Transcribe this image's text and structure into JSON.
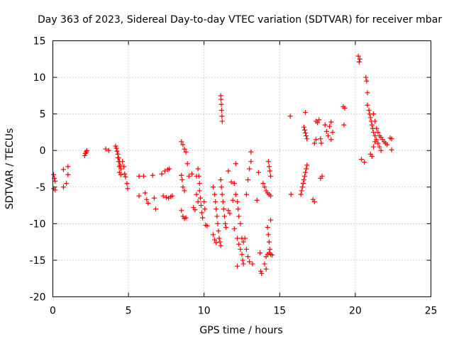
{
  "chart_data": {
    "type": "scatter",
    "title": "Day 363 of 2023, Sidereal Day-to-day VTEC variation (SDTVAR) for receiver mbar",
    "xlabel": "GPS time / hours",
    "ylabel": "SDTVAR / TECUs",
    "xlim": [
      0,
      25
    ],
    "ylim": [
      -20,
      15
    ],
    "xticks": [
      0,
      5,
      10,
      15,
      20,
      25
    ],
    "yticks": [
      -20,
      -15,
      -10,
      -5,
      0,
      5,
      10,
      15
    ],
    "xtick_labels": [
      "0",
      "5",
      "10",
      "15",
      "20",
      "25"
    ],
    "ytick_labels": [
      "-20",
      "-15",
      "-10",
      "-5",
      "0",
      "5",
      "10",
      "15"
    ],
    "grid": true,
    "marker": "+",
    "color": "#ff0000",
    "series": [
      {
        "name": "SDTVAR",
        "points": [
          [
            0.05,
            -3.3
          ],
          [
            0.1,
            -3.8
          ],
          [
            0.15,
            -4.2
          ],
          [
            0.05,
            -5.2
          ],
          [
            0.15,
            -5.4
          ],
          [
            0.7,
            -2.6
          ],
          [
            0.7,
            -5.0
          ],
          [
            0.9,
            -4.5
          ],
          [
            1.0,
            -2.2
          ],
          [
            1.0,
            -3.3
          ],
          [
            2.1,
            -0.7
          ],
          [
            2.15,
            -0.4
          ],
          [
            2.2,
            -0.2
          ],
          [
            2.25,
            0.0
          ],
          [
            3.5,
            0.2
          ],
          [
            3.7,
            0.0
          ],
          [
            4.15,
            0.6
          ],
          [
            4.2,
            0.3
          ],
          [
            4.25,
            -0.1
          ],
          [
            4.3,
            -0.5
          ],
          [
            4.35,
            -1.0
          ],
          [
            4.4,
            -1.5
          ],
          [
            4.45,
            -2.0
          ],
          [
            4.5,
            -2.5
          ],
          [
            4.4,
            -3.0
          ],
          [
            4.5,
            -3.3
          ],
          [
            4.3,
            -1.0
          ],
          [
            4.35,
            -1.5
          ],
          [
            4.4,
            -2.2
          ],
          [
            4.7,
            -2.2
          ],
          [
            4.75,
            -3.2
          ],
          [
            4.8,
            -3.6
          ],
          [
            4.9,
            -4.5
          ],
          [
            4.95,
            -5.2
          ],
          [
            4.6,
            -1.5
          ],
          [
            5.7,
            -3.5
          ],
          [
            5.7,
            -6.2
          ],
          [
            6.0,
            -3.5
          ],
          [
            6.1,
            -5.8
          ],
          [
            6.2,
            -6.7
          ],
          [
            6.3,
            -7.2
          ],
          [
            6.6,
            -3.4
          ],
          [
            6.7,
            -6.5
          ],
          [
            6.8,
            -8.0
          ],
          [
            7.2,
            -3.2
          ],
          [
            7.3,
            -6.2
          ],
          [
            7.4,
            -2.8
          ],
          [
            7.5,
            -6.4
          ],
          [
            7.6,
            -2.6
          ],
          [
            7.65,
            -6.5
          ],
          [
            7.7,
            -2.5
          ],
          [
            7.8,
            -6.3
          ],
          [
            7.9,
            -6.2
          ],
          [
            8.5,
            1.2
          ],
          [
            8.6,
            0.8
          ],
          [
            8.7,
            0.2
          ],
          [
            8.8,
            -0.2
          ],
          [
            8.5,
            -3.4
          ],
          [
            8.55,
            -4.0
          ],
          [
            8.6,
            -5.0
          ],
          [
            8.7,
            -5.5
          ],
          [
            8.5,
            -8.2
          ],
          [
            8.6,
            -9.0
          ],
          [
            8.7,
            -9.3
          ],
          [
            8.8,
            -9.2
          ],
          [
            8.9,
            -1.8
          ],
          [
            9.0,
            -3.5
          ],
          [
            9.2,
            -3.2
          ],
          [
            9.3,
            -7.8
          ],
          [
            9.4,
            -8.1
          ],
          [
            9.5,
            -3.5
          ],
          [
            9.6,
            -2.5
          ],
          [
            9.65,
            -3.5
          ],
          [
            9.7,
            -4.5
          ],
          [
            9.7,
            -5.5
          ],
          [
            9.75,
            -6.5
          ],
          [
            9.8,
            -7.5
          ],
          [
            9.85,
            -8.5
          ],
          [
            9.9,
            -9.2
          ],
          [
            9.5,
            -6.0
          ],
          [
            9.6,
            -7.0
          ],
          [
            10.0,
            -7.0
          ],
          [
            10.05,
            -8.0
          ],
          [
            10.1,
            -10.2
          ],
          [
            10.2,
            -10.3
          ],
          [
            10.6,
            -5.0
          ],
          [
            10.7,
            -6.0
          ],
          [
            10.75,
            -7.0
          ],
          [
            10.8,
            -8.0
          ],
          [
            10.85,
            -9.0
          ],
          [
            10.9,
            -10.0
          ],
          [
            10.95,
            -11.0
          ],
          [
            11.0,
            -12.0
          ],
          [
            11.05,
            -12.5
          ],
          [
            11.1,
            -13.0
          ],
          [
            10.6,
            -11.5
          ],
          [
            10.7,
            -12.2
          ],
          [
            10.8,
            -12.6
          ],
          [
            11.1,
            -4.0
          ],
          [
            11.15,
            -5.0
          ],
          [
            11.2,
            -6.0
          ],
          [
            11.25,
            -7.0
          ],
          [
            11.3,
            -8.0
          ],
          [
            11.35,
            -9.0
          ],
          [
            11.4,
            -10.0
          ],
          [
            11.45,
            -10.5
          ],
          [
            11.1,
            7.5
          ],
          [
            11.12,
            7.0
          ],
          [
            11.14,
            6.3
          ],
          [
            11.16,
            5.5
          ],
          [
            11.18,
            4.7
          ],
          [
            11.2,
            4.0
          ],
          [
            11.6,
            -2.8
          ],
          [
            11.6,
            -8.2
          ],
          [
            11.7,
            -8.6
          ],
          [
            11.8,
            -4.3
          ],
          [
            11.9,
            -6.8
          ],
          [
            12.0,
            -10.7
          ],
          [
            12.1,
            -1.8
          ],
          [
            12.0,
            -4.5
          ],
          [
            12.1,
            -6.0
          ],
          [
            12.2,
            -7.0
          ],
          [
            12.25,
            -8.0
          ],
          [
            12.3,
            -9.0
          ],
          [
            12.4,
            -10.0
          ],
          [
            12.2,
            -12.0
          ],
          [
            12.3,
            -12.8
          ],
          [
            12.4,
            -13.5
          ],
          [
            12.5,
            -14.2
          ],
          [
            12.55,
            -15.0
          ],
          [
            12.6,
            -15.5
          ],
          [
            12.2,
            -15.8
          ],
          [
            12.7,
            -12.0
          ],
          [
            12.8,
            -13.5
          ],
          [
            12.9,
            -14.5
          ],
          [
            13.0,
            -15.2
          ],
          [
            13.2,
            -15.5
          ],
          [
            12.5,
            -12.0
          ],
          [
            12.6,
            -12.5
          ],
          [
            13.1,
            -0.2
          ],
          [
            12.8,
            -6.0
          ],
          [
            12.9,
            -4.0
          ],
          [
            13.0,
            -2.5
          ],
          [
            13.1,
            -1.5
          ],
          [
            13.5,
            -6.8
          ],
          [
            13.6,
            -3.0
          ],
          [
            13.7,
            -14.0
          ],
          [
            13.75,
            -16.5
          ],
          [
            13.8,
            -16.8
          ],
          [
            14.0,
            -15.5
          ],
          [
            14.1,
            -16.2
          ],
          [
            13.9,
            -4.5
          ],
          [
            14.0,
            -5.0
          ],
          [
            14.1,
            -5.5
          ],
          [
            14.2,
            -5.8
          ],
          [
            14.3,
            -6.0
          ],
          [
            14.4,
            -6.2
          ],
          [
            14.1,
            -14.5
          ],
          [
            14.2,
            -14.2
          ],
          [
            14.3,
            -14.0
          ],
          [
            14.4,
            -14.2
          ],
          [
            14.5,
            -14.3
          ],
          [
            14.2,
            -10.5
          ],
          [
            14.25,
            -11.5
          ],
          [
            14.3,
            -12.5
          ],
          [
            14.35,
            -13.5
          ],
          [
            14.4,
            -9.5
          ],
          [
            14.25,
            -1.5
          ],
          [
            14.3,
            -2.2
          ],
          [
            14.35,
            -2.8
          ],
          [
            14.4,
            -3.5
          ],
          [
            15.7,
            4.7
          ],
          [
            15.75,
            -6.0
          ],
          [
            16.4,
            -6.0
          ],
          [
            16.45,
            -5.5
          ],
          [
            16.5,
            -5.0
          ],
          [
            16.55,
            -4.5
          ],
          [
            16.6,
            -4.0
          ],
          [
            16.65,
            -3.5
          ],
          [
            16.7,
            -3.0
          ],
          [
            16.75,
            -2.5
          ],
          [
            16.8,
            -2.0
          ],
          [
            16.6,
            3.2
          ],
          [
            16.65,
            2.8
          ],
          [
            16.7,
            2.4
          ],
          [
            16.75,
            2.0
          ],
          [
            16.8,
            1.6
          ],
          [
            16.7,
            5.2
          ],
          [
            17.2,
            -6.7
          ],
          [
            17.3,
            -7.0
          ],
          [
            17.4,
            4.0
          ],
          [
            17.5,
            3.8
          ],
          [
            17.3,
            1.0
          ],
          [
            17.4,
            1.5
          ],
          [
            17.7,
            -3.8
          ],
          [
            17.8,
            -3.5
          ],
          [
            17.6,
            4.2
          ],
          [
            17.7,
            1.6
          ],
          [
            17.75,
            1.0
          ],
          [
            18.0,
            3.5
          ],
          [
            18.1,
            2.6
          ],
          [
            18.2,
            2.0
          ],
          [
            18.3,
            3.3
          ],
          [
            18.4,
            1.5
          ],
          [
            18.4,
            3.9
          ],
          [
            18.5,
            2.5
          ],
          [
            19.2,
            6.0
          ],
          [
            19.3,
            5.8
          ],
          [
            19.25,
            3.5
          ],
          [
            20.2,
            12.9
          ],
          [
            20.25,
            12.1
          ],
          [
            20.3,
            12.5
          ],
          [
            20.4,
            -1.2
          ],
          [
            20.6,
            -1.6
          ],
          [
            20.7,
            10.0
          ],
          [
            20.75,
            9.5
          ],
          [
            20.8,
            7.9
          ],
          [
            20.8,
            6.2
          ],
          [
            20.9,
            5.5
          ],
          [
            20.95,
            5.0
          ],
          [
            21.0,
            4.5
          ],
          [
            21.05,
            4.0
          ],
          [
            21.1,
            3.5
          ],
          [
            21.15,
            3.0
          ],
          [
            21.2,
            2.5
          ],
          [
            21.3,
            2.0
          ],
          [
            21.4,
            1.5
          ],
          [
            21.5,
            1.0
          ],
          [
            21.6,
            0.5
          ],
          [
            21.7,
            0.0
          ],
          [
            21.0,
            -0.5
          ],
          [
            21.1,
            -0.8
          ],
          [
            21.2,
            0.5
          ],
          [
            21.3,
            1.2
          ],
          [
            21.2,
            5.0
          ],
          [
            21.3,
            4.0
          ],
          [
            21.4,
            3.0
          ],
          [
            21.5,
            2.5
          ],
          [
            21.6,
            2.0
          ],
          [
            21.7,
            1.8
          ],
          [
            21.8,
            1.5
          ],
          [
            21.9,
            1.2
          ],
          [
            22.0,
            1.0
          ],
          [
            22.1,
            0.8
          ],
          [
            22.3,
            1.7
          ],
          [
            22.4,
            1.6
          ],
          [
            22.4,
            0.1
          ]
        ]
      }
    ]
  }
}
